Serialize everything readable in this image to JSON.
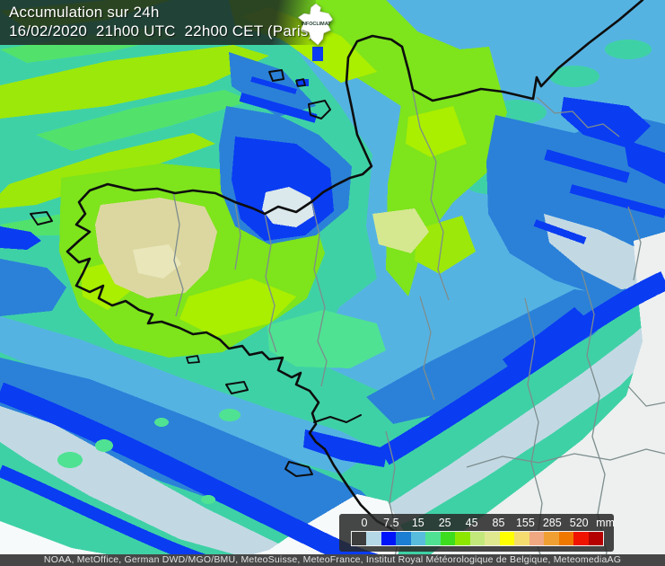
{
  "header": {
    "title": "Accumulation sur 24h",
    "datetime_line": "16/02/2020  21h00 UTC  22h00 CET (Paris)"
  },
  "logo": {
    "label": "INFOCLIMAT"
  },
  "legend": {
    "tick_labels": [
      "0",
      "7.5",
      "15",
      "25",
      "45",
      "85",
      "155",
      "285",
      "520"
    ],
    "unit": "mm",
    "colors": [
      "#3d3d3d",
      "#b4d8e6",
      "#0014fa",
      "#1b7ed2",
      "#58bcdc",
      "#4fe293",
      "#3edc1e",
      "#8ce600",
      "#c2e87c",
      "#dfe88e",
      "#ffff00",
      "#f5dc6e",
      "#f0a882",
      "#f0a032",
      "#f07800",
      "#f01400",
      "#b40000"
    ]
  },
  "footer": {
    "attribution": "NOAA, MetOffice, German DWD/MGO/BMU, MeteoSuisse, MeteoFrance, Institut Royal Météorologique de Belgique, MeteomediaAG"
  },
  "map_colors": {
    "teal": "#3fd1a6",
    "light_green": "#52e26c",
    "spring_green": "#4fe293",
    "green": "#7ee41c",
    "yellow_green": "#9ce80a",
    "bright_green": "#aaee00",
    "pale_green": "#d5e890",
    "beige": "#dcd7a0",
    "pale_beige": "#e9e6ba",
    "sky_blue": "#55b3e2",
    "medium_blue": "#2b81d8",
    "royal_blue": "#0a3cf2",
    "pale_blue": "#c2d9e4",
    "bay_gray": "#dbe8ec",
    "pale_gray": "#edf0ef",
    "sea_white": "#f7fafa",
    "coast": "#0d0d0d",
    "border": "#7d8d8d"
  }
}
